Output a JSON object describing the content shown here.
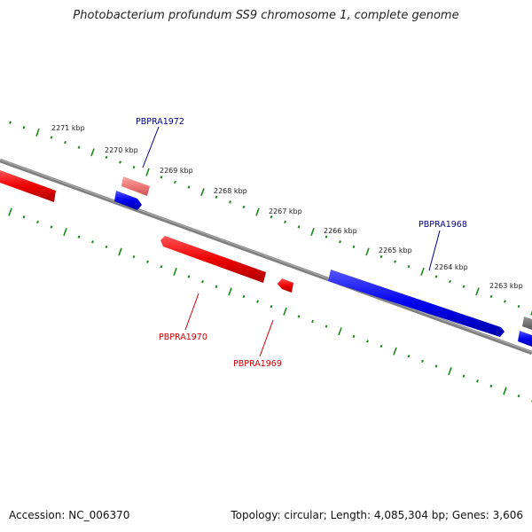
{
  "title": "Photobacterium profundum SS9 chromosome 1, complete genome",
  "accession": "Accession: NC_006370",
  "summary": "Topology: circular; Length: 4,085,304 bp; Genes: 3,606",
  "ticks": [
    "2271 kbp",
    "2270 kbp",
    "2269 kbp",
    "2268 kbp",
    "2267 kbp",
    "2266 kbp",
    "2265 kbp",
    "2264 kbp",
    "2263 kbp"
  ],
  "genes": {
    "forward": [
      {
        "label": "PBPRA1972"
      },
      {
        "label": "PBPRA1968"
      }
    ],
    "reverse": [
      {
        "label": "PBPRA1970"
      },
      {
        "label": "PBPRA1969"
      }
    ]
  },
  "colors": {
    "forward": "#0000ee",
    "reverse": "#ee0000",
    "reverse_faded": "#ee7777",
    "backbone": "#808080",
    "tick": "#1a8a1a",
    "forward_label": "#00008b",
    "reverse_label": "#cc0000"
  }
}
